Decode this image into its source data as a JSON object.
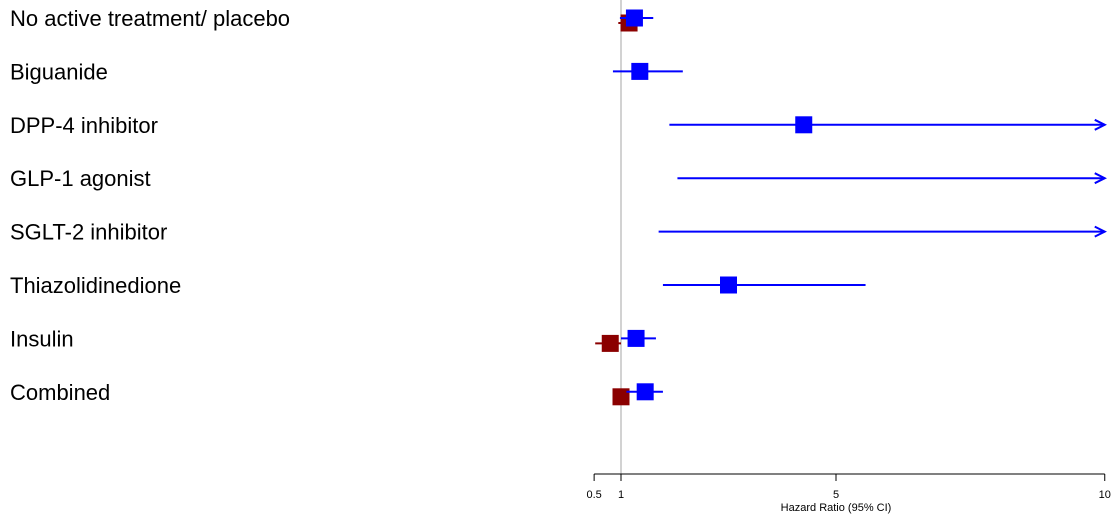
{
  "chart_data": {
    "type": "forest",
    "title": "",
    "xlabel": "Hazard Ratio (95% CI)",
    "xlim": [
      0.5,
      10
    ],
    "xticks": [
      0.5,
      1,
      5,
      10
    ],
    "xtick_labels": [
      "0.5",
      "1",
      "5",
      "10"
    ],
    "reference_line": 1,
    "categories": [
      "No active treatment/ placebo",
      "Biguanide",
      "DPP-4 inhibitor",
      "GLP-1 agonist",
      "SGLT-2 inhibitor",
      "Thiazolidinedione",
      "Insulin",
      "Combined"
    ],
    "series": [
      {
        "color": "#0000ff",
        "points": [
          {
            "hr": 1.25,
            "lo": 0.98,
            "hi": 1.6
          },
          {
            "hr": 1.35,
            "lo": 0.85,
            "hi": 2.15
          },
          {
            "hr": 4.4,
            "lo": 1.9,
            "hi": 10,
            "hi_arrow": true
          },
          {
            "hr": null,
            "lo": 2.05,
            "hi": 10,
            "hi_arrow": true
          },
          {
            "hr": null,
            "lo": 1.7,
            "hi": 10,
            "hi_arrow": true
          },
          {
            "hr": 3.0,
            "lo": 1.78,
            "hi": 5.55
          },
          {
            "hr": 1.28,
            "lo": 1.0,
            "hi": 1.65
          },
          {
            "hr": 1.45,
            "lo": 1.1,
            "hi": 1.78
          }
        ]
      },
      {
        "color": "#8b0000",
        "points": [
          {
            "hr": 1.15,
            "lo": 0.95,
            "hi": 1.3
          },
          null,
          null,
          null,
          null,
          null,
          {
            "hr": 0.8,
            "lo": 0.52,
            "hi": 1.0
          },
          {
            "hr": 1.0,
            "lo": 0.9,
            "hi": 1.12
          }
        ]
      }
    ]
  }
}
